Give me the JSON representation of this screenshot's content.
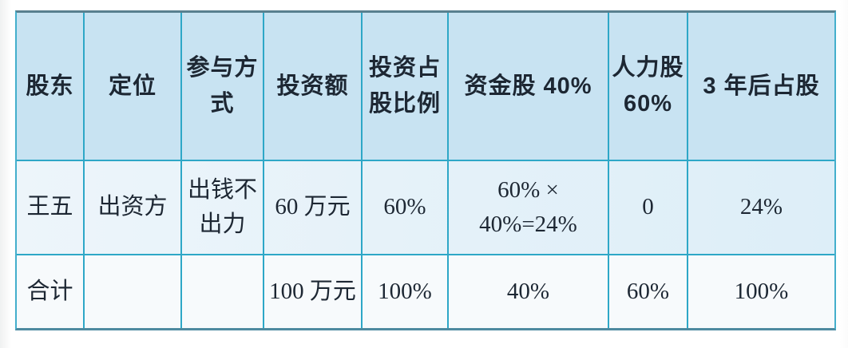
{
  "table": {
    "columns": [
      {
        "label": "股东"
      },
      {
        "label": "定位"
      },
      {
        "label": "参与方\n式"
      },
      {
        "label": "投资额"
      },
      {
        "label": "投资占\n股比例"
      },
      {
        "label": "资金股 40%"
      },
      {
        "label": "人力股\n60%"
      },
      {
        "label": "3 年后占股"
      }
    ],
    "rows": [
      {
        "cells": [
          "王五",
          "出资方",
          "出钱不\n出力",
          "60 万元",
          "60%",
          "60% × 40%=24%",
          "0",
          "24%"
        ]
      },
      {
        "cells": [
          "合计",
          "",
          "",
          "100 万元",
          "100%",
          "40%",
          "60%",
          "100%"
        ]
      }
    ],
    "colors": {
      "header_background": "#c8e3f2",
      "row1_background": "#e5f1f9",
      "row2_background": "#f7fafc",
      "inner_border": "#2ea7c7",
      "outer_top_border": "#59808f",
      "outer_bottom_border": "#4e8aa0",
      "text": "#1d2733"
    }
  }
}
